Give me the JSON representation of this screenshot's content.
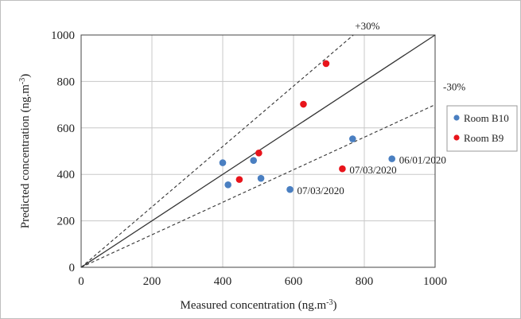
{
  "chart_data": {
    "type": "scatter",
    "title": "",
    "xlabel": "Measured concentration (ng.m",
    "xlabel_sup": "-3",
    "ylabel": "Predicted concentration (ng.m",
    "ylabel_sup": "-3",
    "label_close": ")",
    "xlim": [
      0,
      1000
    ],
    "ylim": [
      0,
      1000
    ],
    "x_ticks": [
      0,
      200,
      400,
      600,
      800,
      1000
    ],
    "y_ticks": [
      0,
      200,
      400,
      600,
      800,
      1000
    ],
    "grid": true,
    "legend_position": "right",
    "series": [
      {
        "name": "Room B10",
        "color": "#4a7fc1",
        "points": [
          {
            "x": 400,
            "y": 450
          },
          {
            "x": 415,
            "y": 355
          },
          {
            "x": 487,
            "y": 460
          },
          {
            "x": 508,
            "y": 383
          },
          {
            "x": 590,
            "y": 335
          },
          {
            "x": 767,
            "y": 553
          },
          {
            "x": 878,
            "y": 467
          }
        ]
      },
      {
        "name": "Room B9",
        "color": "#e8141b",
        "points": [
          {
            "x": 447,
            "y": 378
          },
          {
            "x": 502,
            "y": 492
          },
          {
            "x": 628,
            "y": 702
          },
          {
            "x": 692,
            "y": 877
          },
          {
            "x": 738,
            "y": 424
          }
        ]
      }
    ],
    "reference_lines": [
      {
        "label": "",
        "slope": 1.0,
        "style": "solid"
      },
      {
        "label": "+30%",
        "slope": 1.3,
        "style": "dashed"
      },
      {
        "label": "-30%",
        "slope": 0.7,
        "style": "dashed"
      }
    ],
    "annotations": [
      {
        "text": "07/03/2020",
        "x": 590,
        "y": 335
      },
      {
        "text": "07/03/2020",
        "x": 738,
        "y": 424
      },
      {
        "text": "06/01/2020",
        "x": 878,
        "y": 467
      }
    ]
  }
}
